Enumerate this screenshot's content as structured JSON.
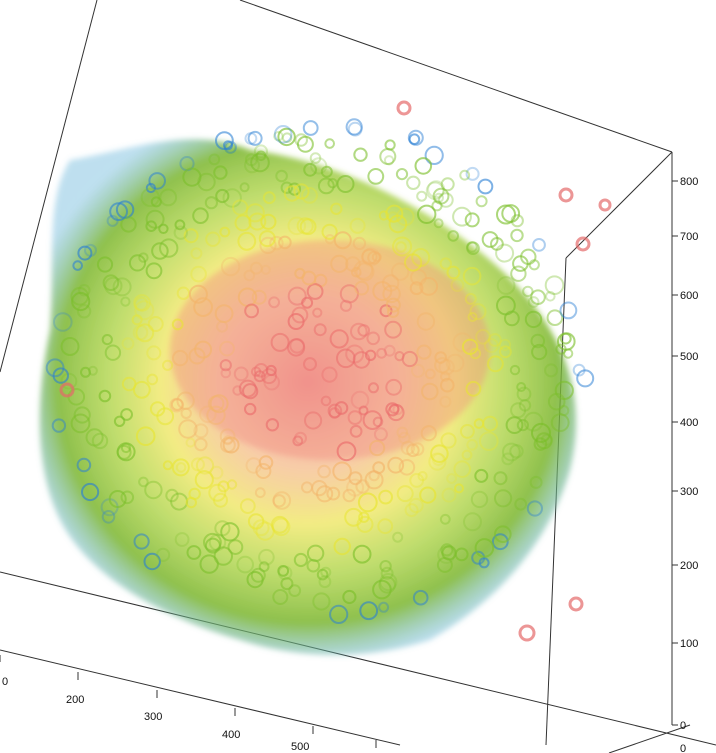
{
  "scene": {
    "description_free": true,
    "colormap": [
      "#2a7fd4",
      "#7bbf2a",
      "#e8e530",
      "#f3b46a",
      "#ea6a6a"
    ]
  },
  "right_axis": {
    "ticks": [
      "800",
      "700",
      "600",
      "500",
      "400",
      "300",
      "200",
      "100",
      "0"
    ]
  },
  "bottom_axis": {
    "ticks": [
      "200",
      "300",
      "400",
      "500"
    ],
    "edge_tick": "0"
  },
  "corner_labels": {
    "bottom_right": "0"
  }
}
